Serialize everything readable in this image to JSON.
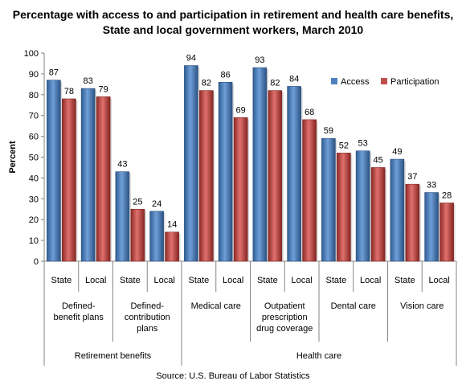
{
  "chart_data": {
    "type": "bar",
    "title_lines": [
      "Percentage with access to and participation in retirement and health care benefits,",
      "State and local government workers, March 2010"
    ],
    "ylabel": "Percent",
    "ylim": [
      0,
      100
    ],
    "yticks": [
      0,
      10,
      20,
      30,
      40,
      50,
      60,
      70,
      80,
      90,
      100
    ],
    "categories": [
      "State",
      "Local",
      "State",
      "Local",
      "State",
      "Local",
      "State",
      "Local",
      "State",
      "Local",
      "State",
      "Local"
    ],
    "benefit_groups": [
      {
        "label_lines": [
          "Defined-",
          "benefit plans"
        ],
        "span": [
          0,
          1
        ]
      },
      {
        "label_lines": [
          "Defined-",
          "contribution",
          "plans"
        ],
        "span": [
          2,
          3
        ]
      },
      {
        "label_lines": [
          "Medical care"
        ],
        "span": [
          4,
          5
        ]
      },
      {
        "label_lines": [
          "Outpatient",
          "prescription",
          "drug coverage"
        ],
        "span": [
          6,
          7
        ]
      },
      {
        "label_lines": [
          "Dental care"
        ],
        "span": [
          8,
          9
        ]
      },
      {
        "label_lines": [
          "Vision care"
        ],
        "span": [
          10,
          11
        ]
      }
    ],
    "top_groups": [
      {
        "label": "Retirement benefits",
        "span": [
          0,
          3
        ]
      },
      {
        "label": "Health care",
        "span": [
          4,
          11
        ]
      }
    ],
    "series": [
      {
        "name": "Access",
        "color": "#4F81BD",
        "values": [
          87,
          83,
          43,
          24,
          94,
          86,
          93,
          84,
          59,
          53,
          49,
          33
        ]
      },
      {
        "name": "Participation",
        "color": "#C0504D",
        "values": [
          78,
          79,
          25,
          14,
          82,
          69,
          82,
          68,
          52,
          45,
          37,
          28
        ]
      }
    ],
    "legend_position": "top-right",
    "grid": false,
    "source": "Source: U.S. Bureau of Labor Statistics"
  }
}
